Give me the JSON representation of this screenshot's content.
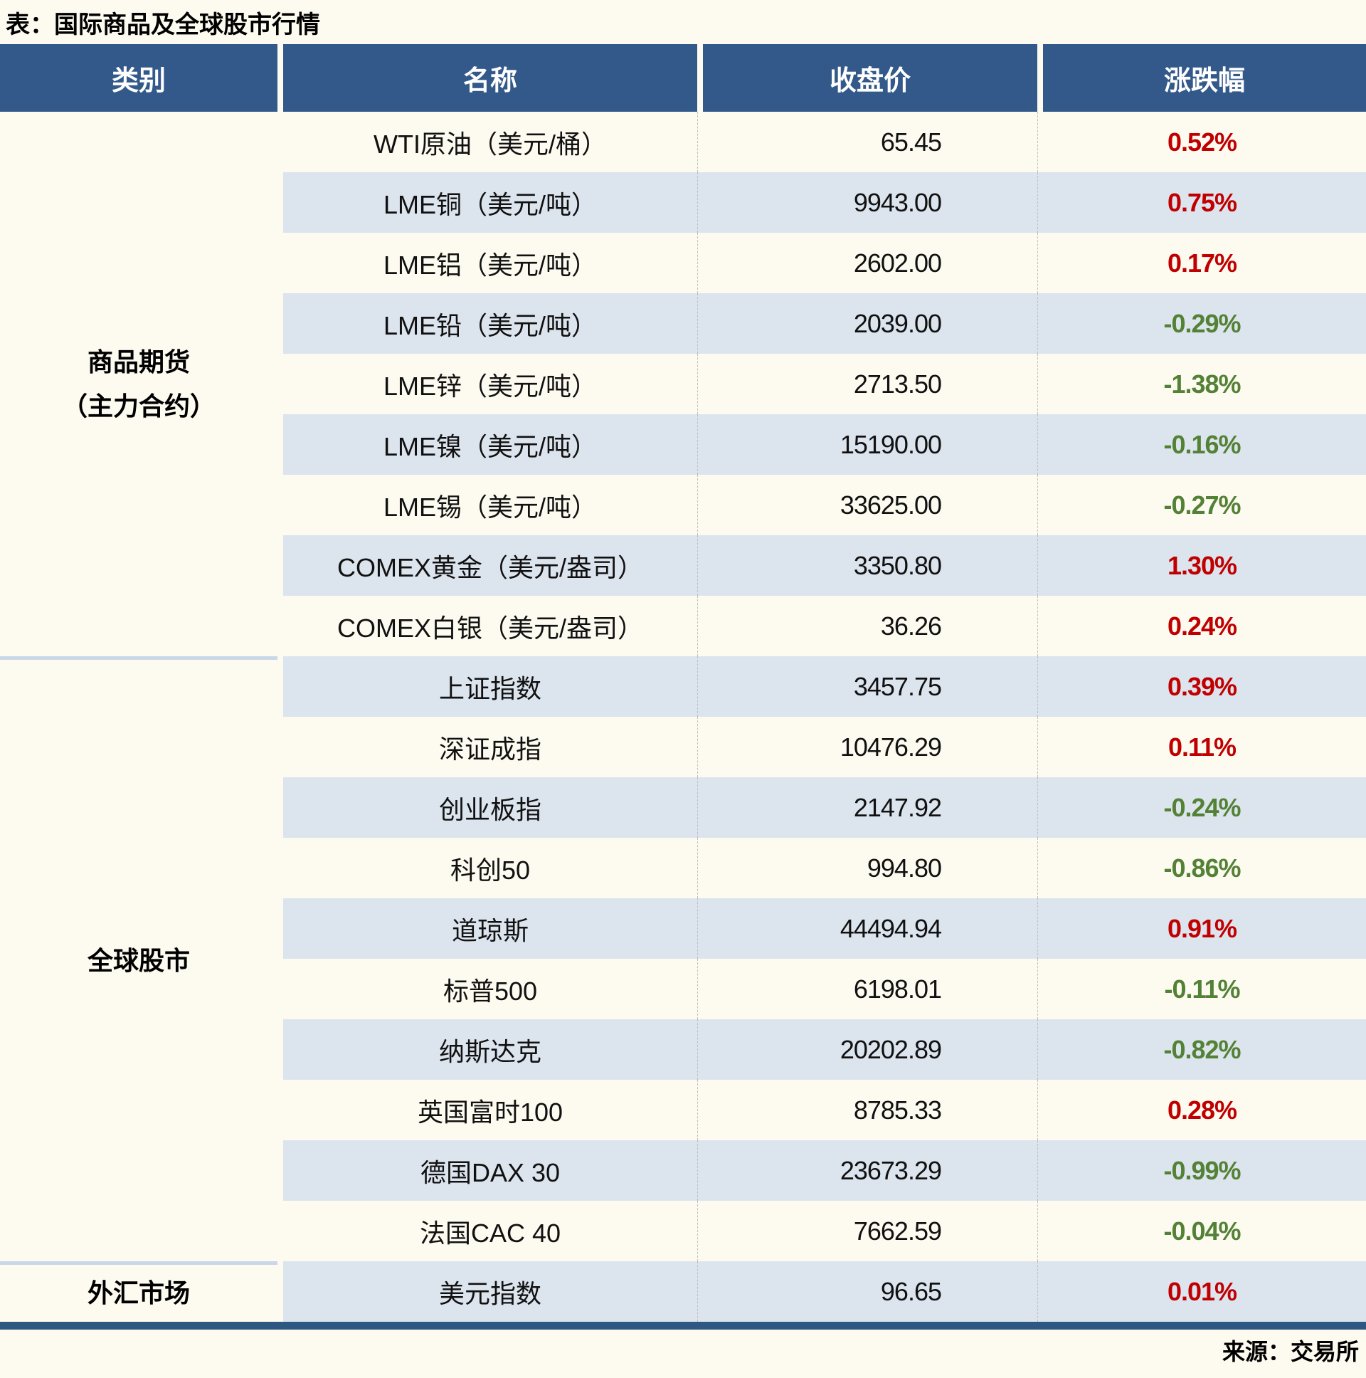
{
  "chart_data": {
    "type": "table",
    "title": "表：国际商品及全球股市行情",
    "columns": [
      "类别",
      "名称",
      "收盘价",
      "涨跌幅"
    ],
    "sections": [
      {
        "category": "商品期货（主力合约）",
        "category_display": "商品期货\n（主力合约）",
        "rows": [
          {
            "name": "WTI原油（美元/桶）",
            "close": "65.45",
            "change": "0.52%",
            "direction": "up"
          },
          {
            "name": "LME铜（美元/吨）",
            "close": "9943.00",
            "change": "0.75%",
            "direction": "up"
          },
          {
            "name": "LME铝（美元/吨）",
            "close": "2602.00",
            "change": "0.17%",
            "direction": "up"
          },
          {
            "name": "LME铅（美元/吨）",
            "close": "2039.00",
            "change": "-0.29%",
            "direction": "down"
          },
          {
            "name": "LME锌（美元/吨）",
            "close": "2713.50",
            "change": "-1.38%",
            "direction": "down"
          },
          {
            "name": "LME镍（美元/吨）",
            "close": "15190.00",
            "change": "-0.16%",
            "direction": "down"
          },
          {
            "name": "LME锡（美元/吨）",
            "close": "33625.00",
            "change": "-0.27%",
            "direction": "down"
          },
          {
            "name": "COMEX黄金（美元/盎司）",
            "close": "3350.80",
            "change": "1.30%",
            "direction": "up"
          },
          {
            "name": "COMEX白银（美元/盎司）",
            "close": "36.26",
            "change": "0.24%",
            "direction": "up"
          }
        ]
      },
      {
        "category": "全球股市",
        "category_display": "全球股市",
        "rows": [
          {
            "name": "上证指数",
            "close": "3457.75",
            "change": "0.39%",
            "direction": "up"
          },
          {
            "name": "深证成指",
            "close": "10476.29",
            "change": "0.11%",
            "direction": "up"
          },
          {
            "name": "创业板指",
            "close": "2147.92",
            "change": "-0.24%",
            "direction": "down"
          },
          {
            "name": "科创50",
            "close": "994.80",
            "change": "-0.86%",
            "direction": "down"
          },
          {
            "name": "道琼斯",
            "close": "44494.94",
            "change": "0.91%",
            "direction": "up"
          },
          {
            "name": "标普500",
            "close": "6198.01",
            "change": "-0.11%",
            "direction": "down"
          },
          {
            "name": "纳斯达克",
            "close": "20202.89",
            "change": "-0.82%",
            "direction": "down"
          },
          {
            "name": "英国富时100",
            "close": "8785.33",
            "change": "0.28%",
            "direction": "up"
          },
          {
            "name": "德国DAX 30",
            "close": "23673.29",
            "change": "-0.99%",
            "direction": "down"
          },
          {
            "name": "法国CAC 40",
            "close": "7662.59",
            "change": "-0.04%",
            "direction": "down"
          }
        ]
      },
      {
        "category": "外汇市场",
        "category_display": "外汇市场",
        "rows": [
          {
            "name": "美元指数",
            "close": "96.65",
            "change": "0.01%",
            "direction": "up"
          }
        ]
      }
    ],
    "source": "来源：交易所"
  },
  "colors": {
    "page_bg": "#FDFAF0",
    "header_bg": "#33598B",
    "row_alt_bg": "#DCE4EE",
    "up_red": "#C00000",
    "down_green": "#538135",
    "bottom_bar": "#2E5881",
    "section_divider": "#C9D7E8"
  }
}
